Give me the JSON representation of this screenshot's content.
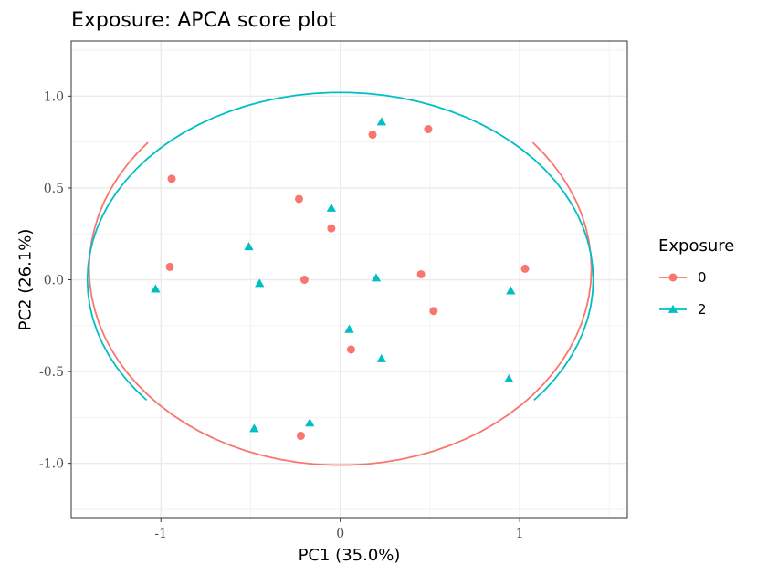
{
  "chart_data": {
    "type": "scatter",
    "title": "Exposure: APCA score plot",
    "xlabel": "PC1 (35.0%)",
    "ylabel": "PC2 (26.1%)",
    "xlim": [
      -1.5,
      1.6
    ],
    "ylim": [
      -1.3,
      1.3
    ],
    "x_ticks": [
      -1,
      0,
      1
    ],
    "x_tick_labels": [
      "-1",
      "0",
      "1"
    ],
    "y_ticks": [
      -1.0,
      -0.5,
      0.0,
      0.5,
      1.0
    ],
    "y_tick_labels": [
      "-1.0",
      "-0.5",
      "0.0",
      "0.5",
      "1.0"
    ],
    "grid": true,
    "legend": {
      "title": "Exposure",
      "position": "right",
      "entries": [
        "0",
        "2"
      ]
    },
    "series": [
      {
        "name": "0",
        "color": "#F8766D",
        "marker": "circle",
        "points": [
          [
            0.18,
            0.79
          ],
          [
            0.49,
            0.82
          ],
          [
            -0.94,
            0.55
          ],
          [
            -0.23,
            0.44
          ],
          [
            -0.05,
            0.28
          ],
          [
            -0.95,
            0.07
          ],
          [
            -0.2,
            0.0
          ],
          [
            0.45,
            0.03
          ],
          [
            1.03,
            0.06
          ],
          [
            0.52,
            -0.17
          ],
          [
            0.06,
            -0.38
          ],
          [
            -0.22,
            -0.85
          ]
        ],
        "ellipse": {
          "cx": 0.0,
          "cy": 0.06,
          "rx": 1.4,
          "ry": 1.07,
          "gap_from_deg": 40,
          "gap_to_deg": 140
        }
      },
      {
        "name": "2",
        "color": "#00BFC4",
        "marker": "triangle",
        "points": [
          [
            0.23,
            0.86
          ],
          [
            -0.05,
            0.39
          ],
          [
            -0.51,
            0.18
          ],
          [
            0.2,
            0.01
          ],
          [
            -1.03,
            -0.05
          ],
          [
            -0.45,
            -0.02
          ],
          [
            0.95,
            -0.06
          ],
          [
            0.05,
            -0.27
          ],
          [
            0.23,
            -0.43
          ],
          [
            0.94,
            -0.54
          ],
          [
            -0.48,
            -0.81
          ],
          [
            -0.17,
            -0.78
          ]
        ],
        "ellipse": {
          "cx": 0.0,
          "cy": 0.0,
          "rx": 1.41,
          "ry": 1.02,
          "gap_from_deg": 220,
          "gap_to_deg": 320
        }
      }
    ]
  }
}
